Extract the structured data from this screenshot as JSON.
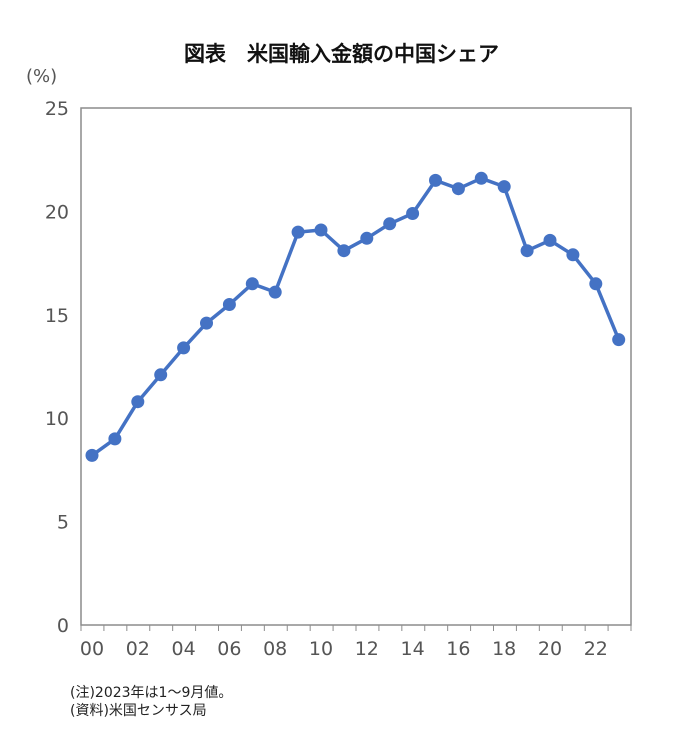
{
  "chart_data": {
    "type": "line",
    "title": "図表　米国輸入金額の中国シェア",
    "ylabel": "(%)",
    "xlabel": "",
    "ylim": [
      0,
      25
    ],
    "yticks": [
      "0",
      "5",
      "10",
      "15",
      "20",
      "25"
    ],
    "xtick_labels": [
      "00",
      "02",
      "04",
      "06",
      "08",
      "10",
      "12",
      "14",
      "16",
      "18",
      "20",
      "22"
    ],
    "x": [
      2000,
      2001,
      2002,
      2003,
      2004,
      2005,
      2006,
      2007,
      2008,
      2009,
      2010,
      2011,
      2012,
      2013,
      2014,
      2015,
      2016,
      2017,
      2018,
      2019,
      2020,
      2021,
      2022,
      2023
    ],
    "values": [
      8.2,
      9.0,
      10.8,
      12.1,
      13.4,
      14.6,
      15.5,
      16.5,
      16.1,
      19.0,
      19.1,
      18.1,
      18.7,
      19.4,
      19.9,
      21.5,
      21.1,
      21.6,
      21.2,
      18.1,
      18.6,
      17.9,
      16.5,
      13.8
    ],
    "color": "#4472c4",
    "grid": false
  },
  "notes": {
    "line1": "(注)2023年は1～9月値。",
    "line2": "(資料)米国センサス局"
  }
}
